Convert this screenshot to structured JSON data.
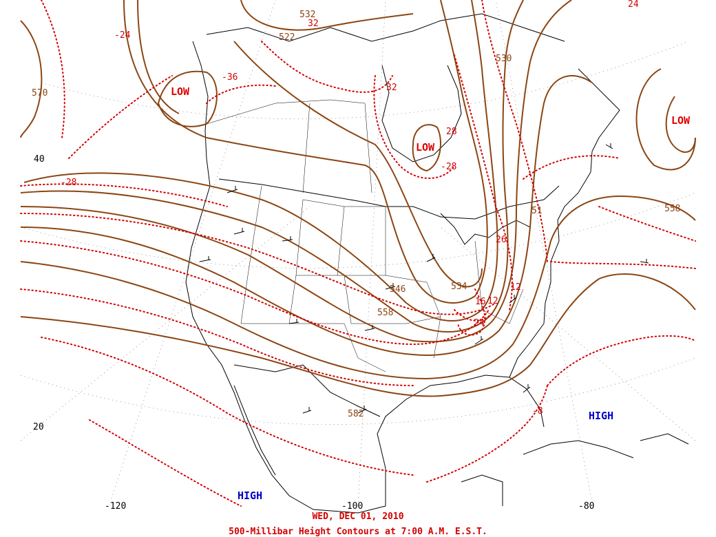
{
  "caption": {
    "date": "WED, DEC 01, 2010",
    "title": "500-Millibar Height Contours at 7:00 A.M. E.S.T."
  },
  "colors": {
    "height_contour": "#8b4513",
    "temperature_isotherm": "#d40000",
    "low_label": "#e00000",
    "high_label": "#0000c8",
    "coastline": "#000000"
  },
  "pressure_centers": {
    "low_1": "LOW",
    "low_2": "LOW",
    "low_3": "LOW",
    "high_1": "HIGH",
    "high_2": "HIGH"
  },
  "height_labels": {
    "h570": "570",
    "h522": "522",
    "h532": "532",
    "h558_east": "558",
    "h546": "546",
    "h558": "558",
    "h534": "534",
    "h582": "582",
    "h530": "530",
    "h51": "51"
  },
  "temperature_labels": {
    "t_24_west": "-24",
    "t_36": "-36",
    "t_32_north": "32",
    "t_28_west": "-28",
    "t_28": "28",
    "t_28_lake": "-28",
    "t_26": "26",
    "t_16": "16",
    "t_12": "12",
    "t_12b": "12",
    "t_24_gulf": "24",
    "t_8": "-8",
    "t_24_ne": "24",
    "t_32_arctic": "32"
  },
  "axis_labels": {
    "lat_40": "40",
    "lat_20": "20",
    "lon_120": "-120",
    "lon_100": "-100",
    "lon_80": "-80"
  }
}
